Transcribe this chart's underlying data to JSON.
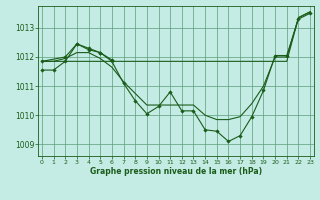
{
  "title": "Graphe pression niveau de la mer (hPa)",
  "bg_color": "#c5ece4",
  "grid_color": "#5a9e7a",
  "line_color": "#1a5c1a",
  "x_ticks": [
    0,
    1,
    2,
    3,
    4,
    5,
    6,
    7,
    8,
    9,
    10,
    11,
    12,
    13,
    14,
    15,
    16,
    17,
    18,
    19,
    20,
    21,
    22,
    23
  ],
  "y_ticks": [
    1009,
    1010,
    1011,
    1012,
    1013
  ],
  "ylim": [
    1008.6,
    1013.75
  ],
  "xlim": [
    -0.3,
    23.3
  ],
  "series1_x": [
    0,
    1,
    2,
    3,
    4,
    5,
    6,
    7,
    8,
    9,
    10,
    11,
    12,
    13,
    14,
    15,
    16,
    17,
    18,
    19,
    20,
    21,
    22,
    23
  ],
  "series1_y": [
    1011.85,
    1011.85,
    1011.85,
    1011.85,
    1011.85,
    1011.85,
    1011.85,
    1011.85,
    1011.85,
    1011.85,
    1011.85,
    1011.85,
    1011.85,
    1011.85,
    1011.85,
    1011.85,
    1011.85,
    1011.85,
    1011.85,
    1011.85,
    1011.85,
    1011.85,
    1013.35,
    1013.55
  ],
  "series2_x": [
    0,
    1,
    2,
    3,
    4,
    5,
    6,
    7,
    8,
    9,
    10,
    11,
    12,
    13,
    14,
    15,
    16,
    17,
    18,
    19,
    20,
    21,
    22,
    23
  ],
  "series2_y": [
    1011.85,
    1011.85,
    1011.95,
    1012.15,
    1012.15,
    1011.95,
    1011.65,
    1011.15,
    1010.75,
    1010.35,
    1010.35,
    1010.35,
    1010.35,
    1010.35,
    1010.0,
    1009.85,
    1009.85,
    1009.95,
    1010.4,
    1011.0,
    1012.0,
    1012.0,
    1013.35,
    1013.55
  ],
  "series3_x": [
    0,
    2,
    3,
    4,
    5,
    6
  ],
  "series3_y": [
    1011.85,
    1012.0,
    1012.45,
    1012.3,
    1012.15,
    1011.9
  ],
  "series4_x": [
    0,
    1,
    2,
    3,
    4,
    5,
    6,
    7,
    8,
    9,
    10,
    11,
    12,
    13,
    14,
    15,
    16,
    17,
    18,
    19,
    20,
    21,
    22,
    23
  ],
  "series4_y": [
    1011.55,
    1011.55,
    1011.85,
    1012.45,
    1012.25,
    1012.15,
    1011.85,
    1011.1,
    1010.5,
    1010.05,
    1010.3,
    1010.8,
    1010.15,
    1010.15,
    1009.5,
    1009.45,
    1009.1,
    1009.3,
    1009.95,
    1010.85,
    1012.05,
    1012.05,
    1013.3,
    1013.5
  ]
}
